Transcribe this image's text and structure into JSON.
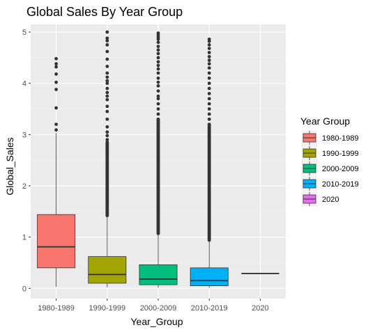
{
  "chart_data": {
    "type": "box",
    "title": "Global Sales By Year Group",
    "xlabel": "Year_Group",
    "ylabel": "Global_Sales",
    "ylim": [
      -0.2,
      5.15
    ],
    "yticks": [
      0,
      1,
      2,
      3,
      4,
      5
    ],
    "grid": true,
    "legend": {
      "title": "Year Group",
      "placement": "right"
    },
    "categories": [
      "1980-1989",
      "1990-1999",
      "2000-2009",
      "2010-2019",
      "2020"
    ],
    "series": [
      {
        "name": "1980-1989",
        "color": "#F8766D",
        "min": 0.03,
        "q1": 0.4,
        "median": 0.81,
        "q3": 1.44,
        "max": 3.03,
        "outliers": [
          3.09,
          3.2,
          3.52,
          3.88,
          4.02,
          4.18,
          4.32,
          4.38,
          4.48
        ]
      },
      {
        "name": "1990-1999",
        "color": "#A3A500",
        "min": 0.02,
        "q1": 0.1,
        "median": 0.27,
        "q3": 0.62,
        "max": 1.4,
        "outliers_dense_range": [
          1.42,
          2.85
        ],
        "outliers": [
          2.9,
          2.98,
          3.05,
          3.15,
          3.3,
          3.45,
          3.55,
          3.68,
          3.75,
          3.82,
          3.9,
          4.0,
          4.05,
          4.12,
          4.2,
          4.33,
          4.47,
          4.62,
          4.75,
          4.83,
          4.88,
          5.0
        ]
      },
      {
        "name": "2000-2009",
        "color": "#00BF7D",
        "min": 0.01,
        "q1": 0.07,
        "median": 0.18,
        "q3": 0.46,
        "max": 1.05,
        "outliers_dense_range": [
          1.07,
          3.3
        ],
        "outliers": [
          3.4,
          3.5,
          3.6,
          3.7,
          3.75,
          3.85,
          3.95,
          4.02,
          4.1,
          4.2,
          4.28,
          4.35,
          4.42,
          4.5,
          4.58,
          4.65,
          4.72,
          4.8,
          4.86,
          4.9,
          4.94,
          4.98
        ]
      },
      {
        "name": "2010-2019",
        "color": "#00B0F6",
        "min": 0.01,
        "q1": 0.05,
        "median": 0.15,
        "q3": 0.4,
        "max": 0.92,
        "outliers_dense_range": [
          0.94,
          3.2
        ],
        "outliers": [
          3.3,
          3.4,
          3.5,
          3.6,
          3.7,
          3.8,
          3.9,
          4.0,
          4.1,
          4.2,
          4.3,
          4.38,
          4.45,
          4.52,
          4.6,
          4.68,
          4.75,
          4.82,
          4.86
        ]
      },
      {
        "name": "2020",
        "color": "#E76BF3",
        "min": 0.29,
        "q1": 0.29,
        "median": 0.29,
        "q3": 0.29,
        "max": 0.29,
        "outliers": []
      }
    ]
  }
}
